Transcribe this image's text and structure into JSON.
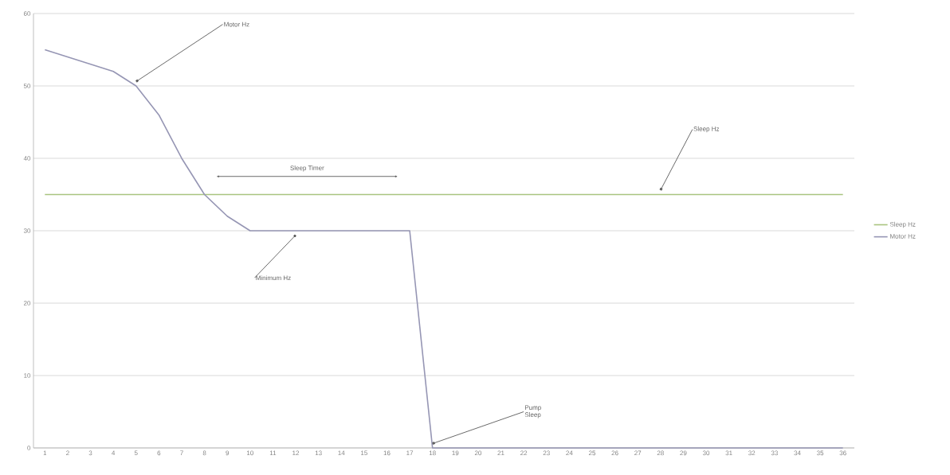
{
  "chart_data": {
    "type": "line",
    "categories": [
      "1",
      "2",
      "3",
      "4",
      "5",
      "6",
      "7",
      "8",
      "9",
      "10",
      "11",
      "12",
      "13",
      "14",
      "15",
      "16",
      "17",
      "18",
      "19",
      "20",
      "21",
      "22",
      "23",
      "24",
      "25",
      "26",
      "27",
      "28",
      "29",
      "30",
      "31",
      "32",
      "33",
      "34",
      "35",
      "36"
    ],
    "series": [
      {
        "name": "Sleep Hz",
        "color": "#a9c47f",
        "values": [
          35,
          35,
          35,
          35,
          35,
          35,
          35,
          35,
          35,
          35,
          35,
          35,
          35,
          35,
          35,
          35,
          35,
          35,
          35,
          35,
          35,
          35,
          35,
          35,
          35,
          35,
          35,
          35,
          35,
          35,
          35,
          35,
          35,
          35,
          35,
          35
        ]
      },
      {
        "name": "Motor Hz",
        "color": "#9696b4",
        "values": [
          55,
          54,
          53,
          52,
          50,
          46,
          40,
          35,
          32,
          30,
          30,
          30,
          30,
          30,
          30,
          30,
          30,
          0,
          0,
          0,
          0,
          0,
          0,
          0,
          0,
          0,
          0,
          0,
          0,
          0,
          0,
          0,
          0,
          0,
          0,
          0
        ]
      }
    ],
    "ylim": [
      0,
      60
    ],
    "yticks": [
      0,
      10,
      20,
      30,
      40,
      50,
      60
    ],
    "grid": "y",
    "legend": "right",
    "marker": "none",
    "line_style": "solid",
    "annotations": [
      {
        "text": "Motor Hz",
        "x": "5",
        "y": 50
      },
      "Sleep Timer",
      {
        "text": "Sleep Hz",
        "x": "28",
        "y": 35
      },
      {
        "text": "Minimum Hz",
        "x": "12",
        "y": 30
      },
      {
        "text": "Pump Sleep",
        "x": "18",
        "y": 0
      }
    ]
  }
}
